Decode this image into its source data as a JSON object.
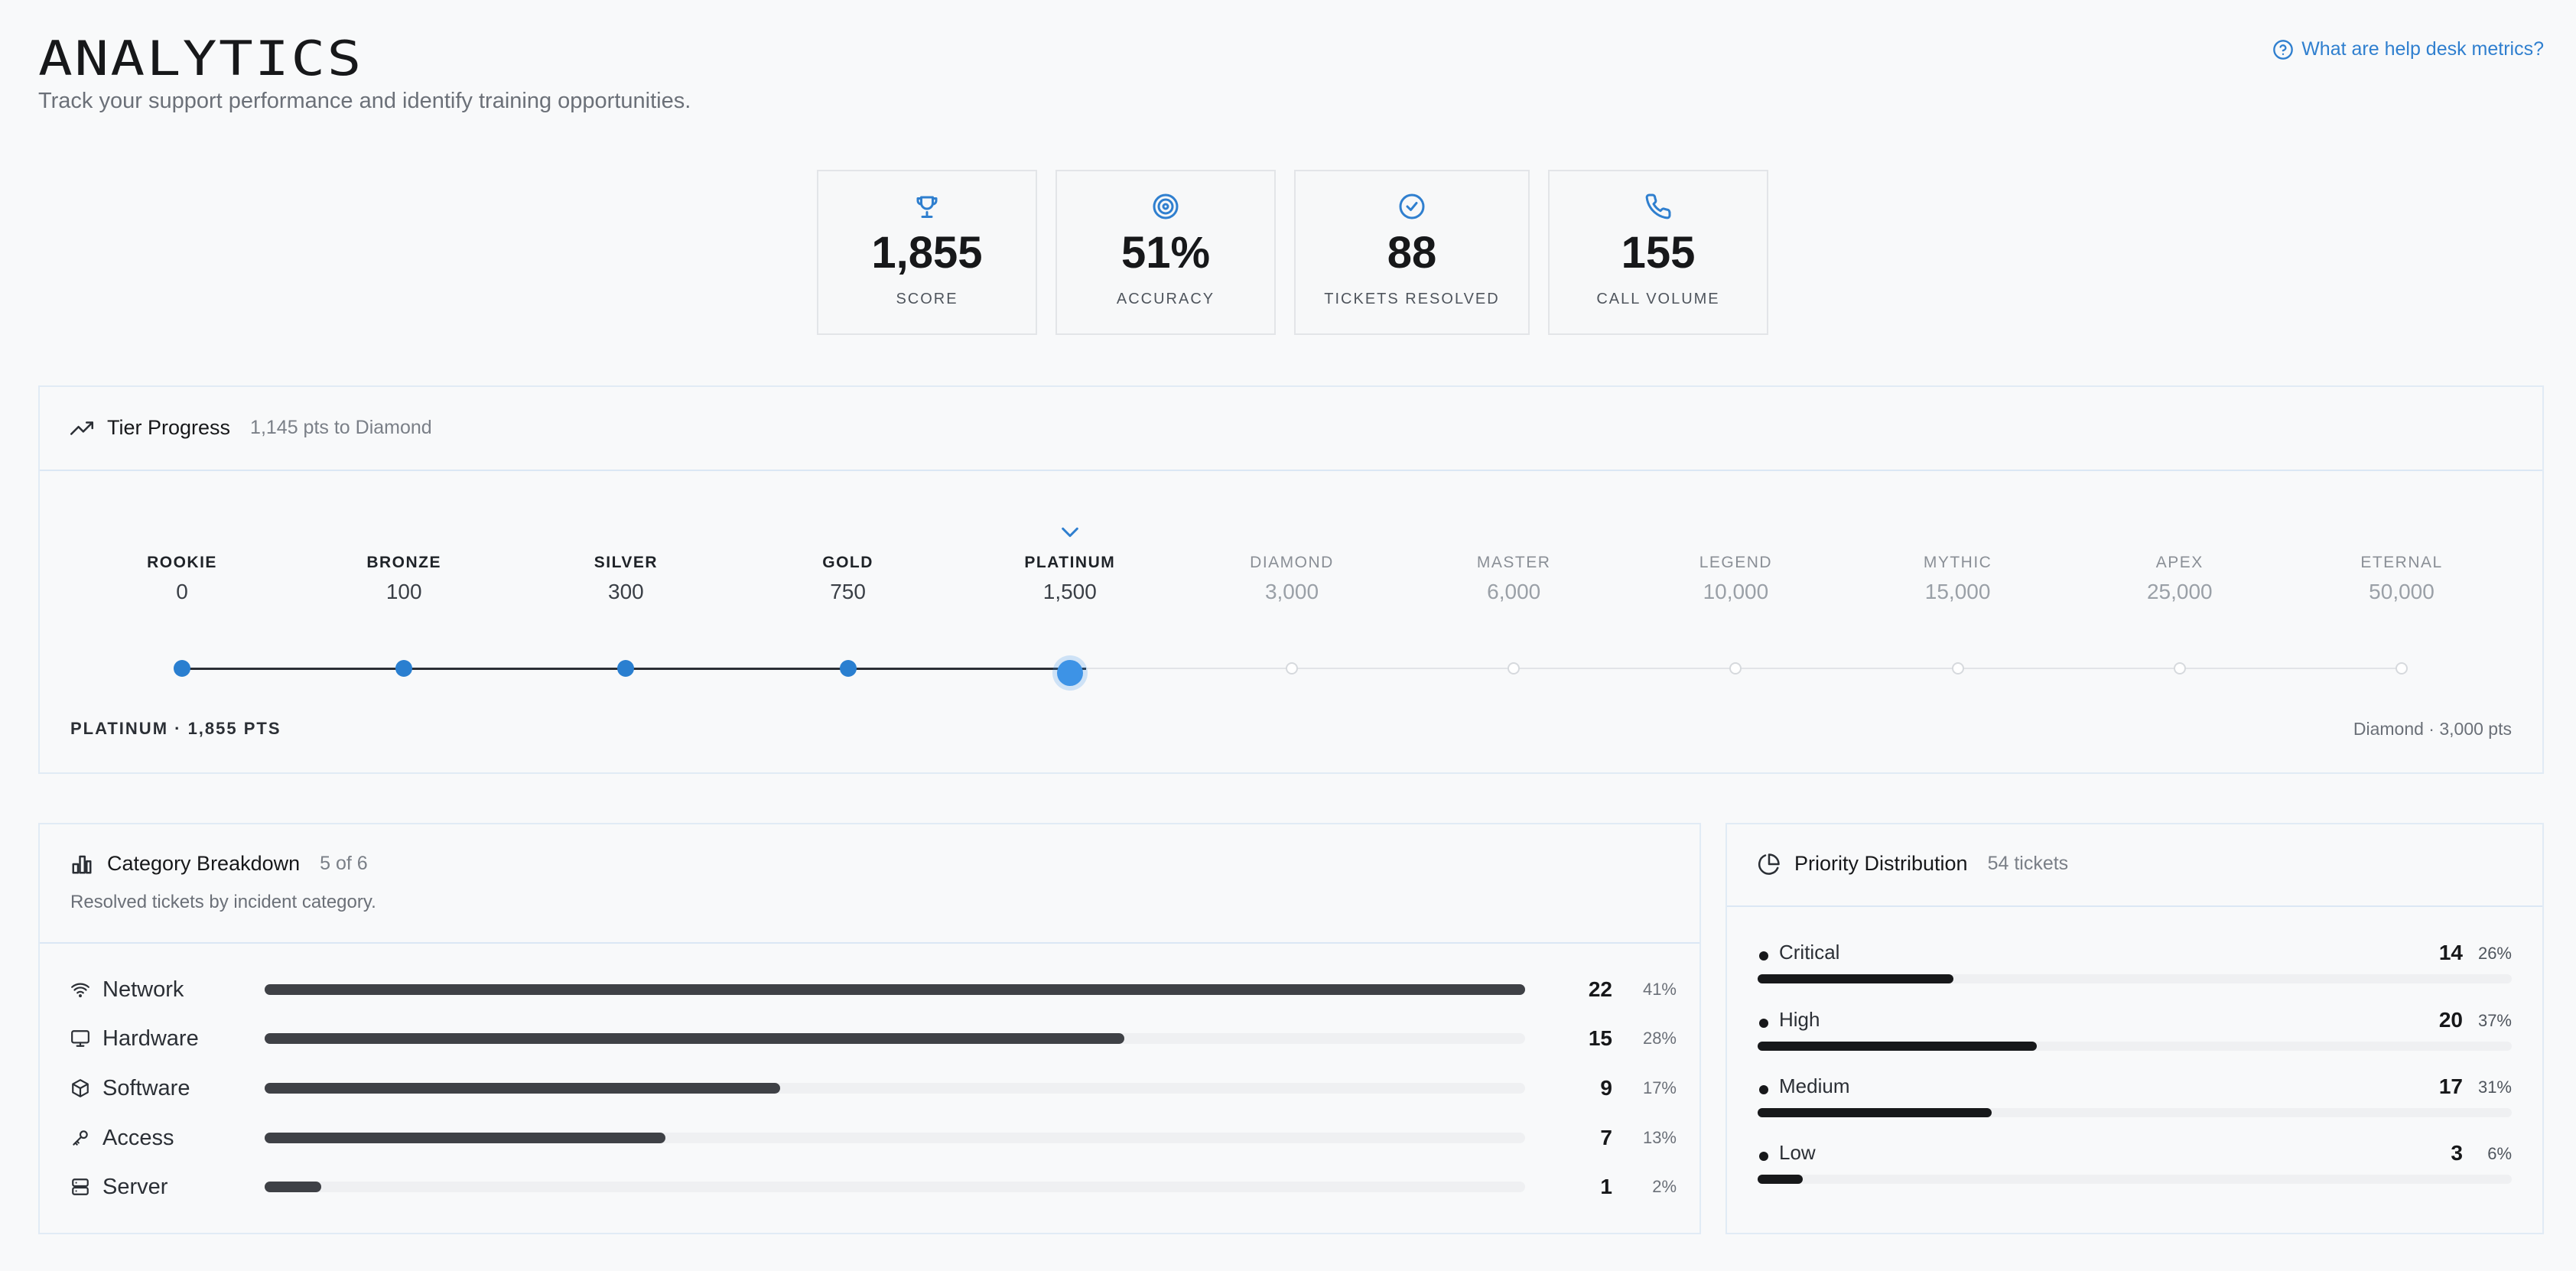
{
  "header": {
    "title": "ANALYTICS",
    "subtitle": "Track your support performance and identify training opportunities.",
    "help_link": "What are help desk metrics?"
  },
  "stats": [
    {
      "icon": "trophy-icon",
      "value": "1,855",
      "label": "SCORE"
    },
    {
      "icon": "target-icon",
      "value": "51%",
      "label": "ACCURACY"
    },
    {
      "icon": "check-circle-icon",
      "value": "88",
      "label": "TICKETS RESOLVED"
    },
    {
      "icon": "phone-icon",
      "value": "155",
      "label": "CALL VOLUME"
    }
  ],
  "tier_progress": {
    "title": "Tier Progress",
    "meta": "1,145 pts to Diamond",
    "current_index": 4,
    "tiers": [
      {
        "name": "ROOKIE",
        "points": "0"
      },
      {
        "name": "BRONZE",
        "points": "100"
      },
      {
        "name": "SILVER",
        "points": "300"
      },
      {
        "name": "GOLD",
        "points": "750"
      },
      {
        "name": "PLATINUM",
        "points": "1,500"
      },
      {
        "name": "DIAMOND",
        "points": "3,000"
      },
      {
        "name": "MASTER",
        "points": "6,000"
      },
      {
        "name": "LEGEND",
        "points": "10,000"
      },
      {
        "name": "MYTHIC",
        "points": "15,000"
      },
      {
        "name": "APEX",
        "points": "25,000"
      },
      {
        "name": "ETERNAL",
        "points": "50,000"
      }
    ],
    "progress_to_next": 0.24,
    "footer_left": "PLATINUM · 1,855 PTS",
    "footer_right": "Diamond · 3,000 pts"
  },
  "category_breakdown": {
    "title": "Category Breakdown",
    "meta": "5 of 6",
    "description": "Resolved tickets by incident category.",
    "rows": [
      {
        "icon": "wifi-icon",
        "label": "Network",
        "count": "22",
        "pct": "41%",
        "fraction": 1.0
      },
      {
        "icon": "monitor-icon",
        "label": "Hardware",
        "count": "15",
        "pct": "28%",
        "fraction": 0.682
      },
      {
        "icon": "package-icon",
        "label": "Software",
        "count": "9",
        "pct": "17%",
        "fraction": 0.409
      },
      {
        "icon": "key-icon",
        "label": "Access",
        "count": "7",
        "pct": "13%",
        "fraction": 0.318
      },
      {
        "icon": "server-icon",
        "label": "Server",
        "count": "1",
        "pct": "2%",
        "fraction": 0.045
      }
    ]
  },
  "priority_distribution": {
    "title": "Priority Distribution",
    "meta": "54 tickets",
    "rows": [
      {
        "label": "Critical",
        "count": "14",
        "pct": "26%",
        "fraction": 0.26
      },
      {
        "label": "High",
        "count": "20",
        "pct": "37%",
        "fraction": 0.37
      },
      {
        "label": "Medium",
        "count": "17",
        "pct": "31%",
        "fraction": 0.31
      },
      {
        "label": "Low",
        "count": "3",
        "pct": "6%",
        "fraction": 0.06
      }
    ]
  }
}
